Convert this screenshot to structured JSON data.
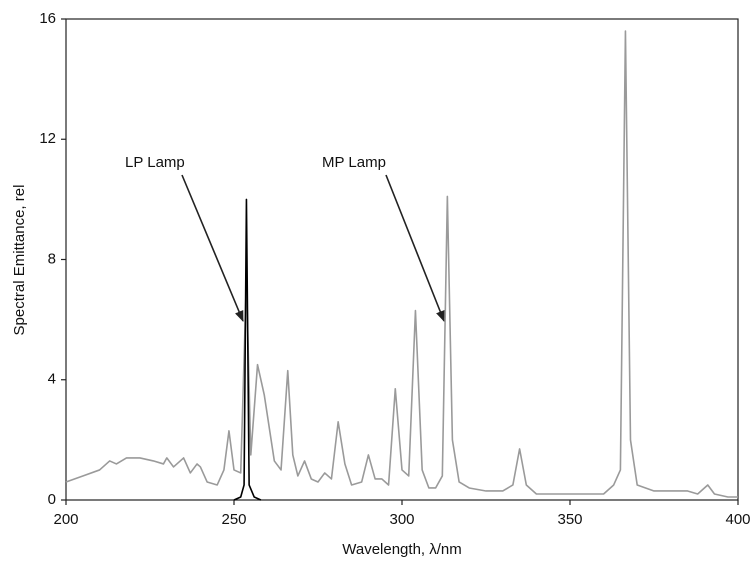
{
  "chart_data": {
    "type": "line",
    "xlabel": "Wavelength, λ/nm",
    "ylabel": "Spectral Emittance, rel",
    "xlim": [
      200,
      400
    ],
    "xticks": [
      200,
      250,
      300,
      350,
      400
    ],
    "ylim": [
      0,
      16
    ],
    "yticks": [
      0,
      4,
      8,
      12,
      16
    ],
    "grid": false,
    "series": [
      {
        "name": "LP Lamp",
        "color": "#000000",
        "x": [
          250,
          252,
          253,
          253.7,
          254.5,
          256,
          258
        ],
        "values": [
          0,
          0.1,
          0.5,
          10,
          0.5,
          0.1,
          0
        ]
      },
      {
        "name": "MP Lamp",
        "color": "#9a9a9a",
        "x": [
          200,
          205,
          210,
          213,
          215,
          218,
          222,
          226,
          229,
          230,
          232,
          235,
          237,
          239,
          240,
          242,
          245,
          247,
          248.5,
          250,
          252,
          253.7,
          255,
          257,
          259,
          262,
          264,
          266,
          267.5,
          269,
          271,
          273,
          275,
          277,
          279,
          281,
          283,
          285,
          288,
          290,
          292,
          294,
          296,
          298,
          300,
          302,
          304,
          306,
          308,
          310,
          312,
          313.5,
          315,
          317,
          320,
          325,
          330,
          333,
          335,
          337,
          340,
          350,
          360,
          363,
          365,
          366.5,
          368,
          370,
          375,
          380,
          385,
          388,
          390,
          391,
          393,
          397,
          400
        ],
        "values": [
          0.6,
          0.8,
          1.0,
          1.3,
          1.2,
          1.4,
          1.4,
          1.3,
          1.2,
          1.4,
          1.1,
          1.4,
          0.9,
          1.2,
          1.1,
          0.6,
          0.5,
          1.0,
          2.3,
          1.0,
          0.9,
          7.4,
          1.5,
          4.5,
          3.5,
          1.3,
          1.0,
          4.3,
          1.5,
          0.8,
          1.3,
          0.7,
          0.6,
          0.9,
          0.7,
          2.6,
          1.2,
          0.5,
          0.6,
          1.5,
          0.7,
          0.7,
          0.5,
          3.7,
          1.0,
          0.8,
          6.3,
          1.0,
          0.4,
          0.4,
          0.8,
          10.1,
          2.0,
          0.6,
          0.4,
          0.3,
          0.3,
          0.5,
          1.7,
          0.5,
          0.2,
          0.2,
          0.2,
          0.5,
          1.0,
          15.6,
          2.0,
          0.5,
          0.3,
          0.3,
          0.3,
          0.2,
          0.4,
          0.5,
          0.2,
          0.1,
          0.1
        ]
      }
    ]
  }
}
